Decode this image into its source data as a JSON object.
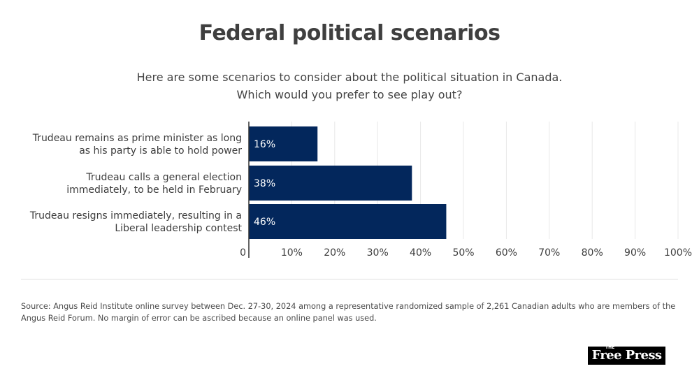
{
  "chart_data": {
    "type": "bar",
    "orientation": "horizontal",
    "title": "Federal political scenarios",
    "subtitle": [
      "Here are some scenarios to consider about the political situation in Canada.",
      "Which would you prefer to see play out?"
    ],
    "categories": [
      [
        "Trudeau remains as prime minister as long",
        "as his party is able to hold power"
      ],
      [
        "Trudeau calls a general election",
        "immediately, to be held in February"
      ],
      [
        "Trudeau resigns immediately, resulting in a",
        "Liberal leadership contest"
      ]
    ],
    "values": [
      16,
      38,
      46
    ],
    "data_labels": [
      "16%",
      "38%",
      "46%"
    ],
    "xlim": [
      0,
      100
    ],
    "x_ticks": [
      0,
      10,
      20,
      30,
      40,
      50,
      60,
      70,
      80,
      90,
      100
    ],
    "x_tick_labels": [
      "0",
      "10%",
      "20%",
      "30%",
      "40%",
      "50%",
      "60%",
      "70%",
      "80%",
      "90%",
      "100%"
    ],
    "grid": true,
    "bar_color": "#03275c",
    "grid_color": "#e8e8e8",
    "axis_color": "#333333"
  },
  "footer": {
    "source": "Source: Angus Reid Institute online survey between Dec. 27-30, 2024 among a representative randomized sample of 2,261 Canadian adults who are members of the Angus Reid Forum. No margin of error can be ascribed because an online panel was used.",
    "logo_small": "THE",
    "logo_text": "Free Press"
  }
}
